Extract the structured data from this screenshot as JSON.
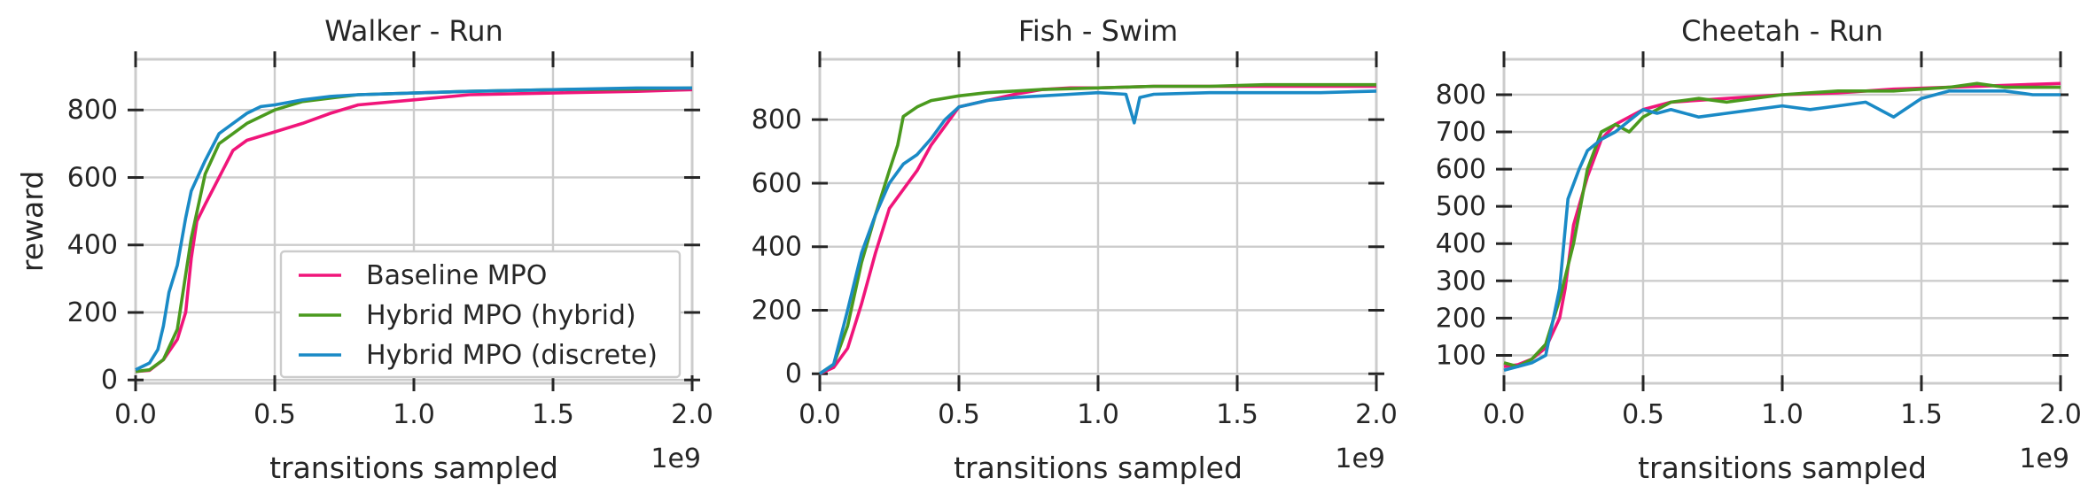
{
  "colors": {
    "baseline": "#f0157a",
    "hybrid": "#4a9a1e",
    "discrete": "#1a8ac6"
  },
  "chart_data": [
    {
      "type": "line",
      "title": "Walker - Run",
      "xlabel": "transitions sampled",
      "ylabel": "reward",
      "x_offset_label": "1e9",
      "xlim": [
        0,
        2.0
      ],
      "ylim": [
        -10,
        950
      ],
      "xticks": [
        0.0,
        0.5,
        1.0,
        1.5,
        2.0
      ],
      "xtick_labels": [
        "0.0",
        "0.5",
        "1.0",
        "1.5",
        "2.0"
      ],
      "yticks": [
        0,
        200,
        400,
        600,
        800
      ],
      "ytick_labels": [
        "0",
        "200",
        "400",
        "600",
        "800"
      ],
      "grid": true,
      "legend": "lower-right",
      "series": [
        {
          "name": "Baseline MPO",
          "color_key": "baseline",
          "x": [
            0,
            0.05,
            0.1,
            0.15,
            0.18,
            0.2,
            0.22,
            0.25,
            0.3,
            0.35,
            0.4,
            0.5,
            0.6,
            0.7,
            0.8,
            1.0,
            1.2,
            1.5,
            1.8,
            2.0
          ],
          "y": [
            25,
            28,
            60,
            120,
            200,
            360,
            470,
            520,
            600,
            680,
            710,
            735,
            760,
            790,
            815,
            830,
            845,
            850,
            855,
            860
          ]
        },
        {
          "name": "Hybrid MPO (hybrid)",
          "color_key": "hybrid",
          "x": [
            0,
            0.05,
            0.1,
            0.15,
            0.2,
            0.25,
            0.3,
            0.35,
            0.4,
            0.5,
            0.6,
            0.7,
            0.8,
            1.0,
            1.2,
            1.5,
            1.8,
            2.0
          ],
          "y": [
            25,
            30,
            60,
            150,
            420,
            610,
            700,
            730,
            760,
            800,
            825,
            835,
            845,
            850,
            855,
            860,
            862,
            865
          ]
        },
        {
          "name": "Hybrid MPO (discrete)",
          "color_key": "discrete",
          "x": [
            0,
            0.05,
            0.08,
            0.1,
            0.12,
            0.15,
            0.18,
            0.2,
            0.25,
            0.3,
            0.35,
            0.4,
            0.45,
            0.5,
            0.6,
            0.7,
            0.8,
            1.0,
            1.2,
            1.5,
            1.8,
            2.0
          ],
          "y": [
            30,
            50,
            90,
            160,
            260,
            340,
            480,
            560,
            650,
            730,
            760,
            790,
            810,
            815,
            830,
            840,
            845,
            850,
            855,
            860,
            865,
            865
          ]
        }
      ]
    },
    {
      "type": "line",
      "title": "Fish - Swim",
      "xlabel": "transitions sampled",
      "ylabel": "",
      "x_offset_label": "1e9",
      "xlim": [
        0,
        2.0
      ],
      "ylim": [
        -30,
        990
      ],
      "xticks": [
        0.0,
        0.5,
        1.0,
        1.5,
        2.0
      ],
      "xtick_labels": [
        "0.0",
        "0.5",
        "1.0",
        "1.5",
        "2.0"
      ],
      "yticks": [
        0,
        200,
        400,
        600,
        800
      ],
      "ytick_labels": [
        "0",
        "200",
        "400",
        "600",
        "800"
      ],
      "grid": true,
      "series": [
        {
          "name": "Baseline MPO",
          "color_key": "baseline",
          "x": [
            0,
            0.05,
            0.1,
            0.15,
            0.2,
            0.25,
            0.3,
            0.35,
            0.4,
            0.45,
            0.5,
            0.6,
            0.7,
            0.8,
            0.9,
            1.0,
            1.2,
            1.4,
            1.6,
            1.8,
            2.0
          ],
          "y": [
            0,
            20,
            80,
            220,
            380,
            520,
            580,
            640,
            720,
            780,
            840,
            860,
            880,
            895,
            900,
            900,
            905,
            905,
            905,
            905,
            905
          ]
        },
        {
          "name": "Hybrid MPO (hybrid)",
          "color_key": "hybrid",
          "x": [
            0,
            0.05,
            0.1,
            0.15,
            0.2,
            0.25,
            0.28,
            0.3,
            0.35,
            0.4,
            0.5,
            0.6,
            0.7,
            0.8,
            1.0,
            1.2,
            1.4,
            1.6,
            1.8,
            2.0
          ],
          "y": [
            0,
            30,
            150,
            350,
            500,
            640,
            720,
            810,
            840,
            860,
            875,
            885,
            890,
            895,
            900,
            905,
            905,
            910,
            910,
            910
          ]
        },
        {
          "name": "Hybrid MPO (discrete)",
          "color_key": "discrete",
          "x": [
            0,
            0.05,
            0.1,
            0.15,
            0.2,
            0.25,
            0.3,
            0.35,
            0.4,
            0.45,
            0.5,
            0.6,
            0.7,
            0.8,
            0.9,
            1.0,
            1.1,
            1.13,
            1.15,
            1.2,
            1.4,
            1.6,
            1.8,
            2.0
          ],
          "y": [
            0,
            30,
            200,
            380,
            500,
            600,
            660,
            690,
            740,
            800,
            840,
            860,
            870,
            875,
            880,
            885,
            880,
            790,
            870,
            880,
            885,
            885,
            885,
            890
          ]
        }
      ]
    },
    {
      "type": "line",
      "title": "Cheetah - Run",
      "xlabel": "transitions sampled",
      "ylabel": "",
      "x_offset_label": "1e9",
      "xlim": [
        0,
        2.0
      ],
      "ylim": [
        25,
        895
      ],
      "xticks": [
        0.0,
        0.5,
        1.0,
        1.5,
        2.0
      ],
      "xtick_labels": [
        "0.0",
        "0.5",
        "1.0",
        "1.5",
        "2.0"
      ],
      "yticks": [
        100,
        200,
        300,
        400,
        500,
        600,
        700,
        800
      ],
      "ytick_labels": [
        "100",
        "200",
        "300",
        "400",
        "500",
        "600",
        "700",
        "800"
      ],
      "grid": true,
      "series": [
        {
          "name": "Baseline MPO",
          "color_key": "baseline",
          "x": [
            0,
            0.05,
            0.1,
            0.15,
            0.2,
            0.22,
            0.25,
            0.3,
            0.35,
            0.4,
            0.5,
            0.6,
            0.8,
            1.0,
            1.2,
            1.4,
            1.6,
            1.8,
            2.0
          ],
          "y": [
            70,
            75,
            90,
            120,
            200,
            280,
            450,
            580,
            680,
            720,
            760,
            780,
            790,
            800,
            805,
            815,
            820,
            825,
            830
          ]
        },
        {
          "name": "Hybrid MPO (hybrid)",
          "color_key": "hybrid",
          "x": [
            0,
            0.05,
            0.1,
            0.15,
            0.2,
            0.25,
            0.3,
            0.35,
            0.4,
            0.45,
            0.5,
            0.6,
            0.7,
            0.8,
            1.0,
            1.2,
            1.4,
            1.6,
            1.7,
            1.8,
            2.0
          ],
          "y": [
            80,
            70,
            90,
            130,
            250,
            400,
            600,
            700,
            720,
            700,
            740,
            780,
            790,
            780,
            800,
            810,
            810,
            820,
            830,
            820,
            820
          ]
        },
        {
          "name": "Hybrid MPO (discrete)",
          "color_key": "discrete",
          "x": [
            0,
            0.05,
            0.1,
            0.15,
            0.2,
            0.23,
            0.27,
            0.3,
            0.35,
            0.4,
            0.45,
            0.5,
            0.55,
            0.6,
            0.7,
            0.8,
            0.9,
            1.0,
            1.1,
            1.2,
            1.3,
            1.4,
            1.5,
            1.6,
            1.7,
            1.8,
            1.9,
            2.0
          ],
          "y": [
            60,
            70,
            80,
            100,
            280,
            520,
            600,
            650,
            680,
            700,
            730,
            760,
            750,
            760,
            740,
            750,
            760,
            770,
            760,
            770,
            780,
            740,
            790,
            810,
            810,
            810,
            800,
            800
          ]
        }
      ]
    }
  ]
}
